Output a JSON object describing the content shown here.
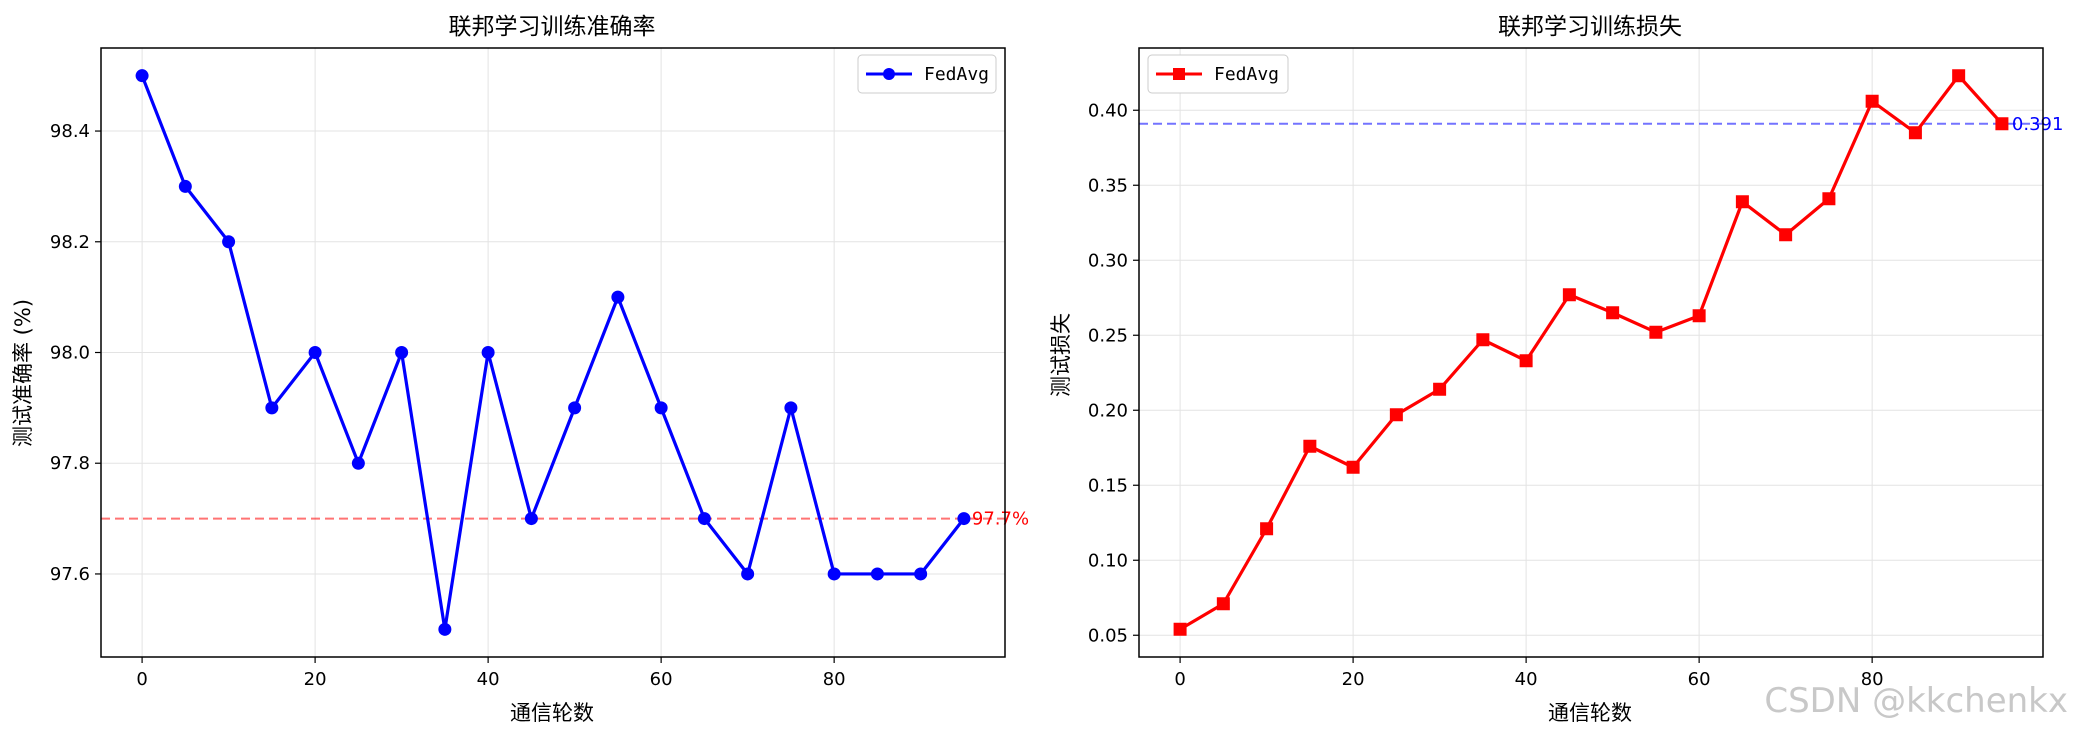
{
  "watermark": "CSDN @kkchenkx",
  "chart_data": [
    {
      "type": "line",
      "title": "联邦学习训练准确率",
      "xlabel": "通信轮数",
      "ylabel": "测试准确率 (%)",
      "x": [
        0,
        5,
        10,
        15,
        20,
        25,
        30,
        35,
        40,
        45,
        50,
        55,
        60,
        65,
        70,
        75,
        80,
        85,
        90,
        95
      ],
      "series": [
        {
          "name": "FedAvg",
          "color": "#0000ff",
          "marker": "circle",
          "values": [
            98.5,
            98.3,
            98.2,
            97.9,
            98.0,
            97.8,
            98.0,
            97.5,
            98.0,
            97.7,
            97.9,
            98.1,
            97.9,
            97.7,
            97.6,
            97.9,
            97.6,
            97.6,
            97.6,
            97.7
          ]
        }
      ],
      "reference_line": {
        "value": 97.7,
        "label": "97.7%",
        "color": "#ff0000"
      },
      "xlim": [
        -4.75,
        99.75
      ],
      "ylim": [
        97.45,
        98.55
      ],
      "xticks": [
        0,
        20,
        40,
        60,
        80
      ],
      "yticks": [
        97.6,
        97.8,
        98.0,
        98.2,
        98.4
      ],
      "ytick_decimals": 1,
      "grid": true,
      "legend_position": "top-right"
    },
    {
      "type": "line",
      "title": "联邦学习训练损失",
      "xlabel": "通信轮数",
      "ylabel": "测试损失",
      "x": [
        0,
        5,
        10,
        15,
        20,
        25,
        30,
        35,
        40,
        45,
        50,
        55,
        60,
        65,
        70,
        75,
        80,
        85,
        90,
        95
      ],
      "series": [
        {
          "name": "FedAvg",
          "color": "#ff0000",
          "marker": "square",
          "values": [
            0.054,
            0.071,
            0.121,
            0.176,
            0.162,
            0.197,
            0.214,
            0.247,
            0.233,
            0.277,
            0.265,
            0.252,
            0.263,
            0.339,
            0.317,
            0.341,
            0.406,
            0.385,
            0.423,
            0.391
          ]
        }
      ],
      "reference_line": {
        "value": 0.391,
        "label": "0.391",
        "color": "#0000ff"
      },
      "xlim": [
        -4.75,
        99.75
      ],
      "ylim": [
        0.0355,
        0.4415
      ],
      "xticks": [
        0,
        20,
        40,
        60,
        80
      ],
      "yticks": [
        0.05,
        0.1,
        0.15,
        0.2,
        0.25,
        0.3,
        0.35,
        0.4
      ],
      "ytick_decimals": 2,
      "grid": true,
      "legend_position": "top-left"
    }
  ]
}
